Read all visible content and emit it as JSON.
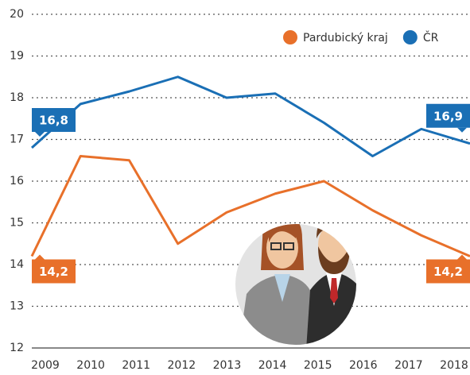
{
  "chart_data": {
    "type": "line",
    "categories": [
      "2009",
      "2010",
      "2011",
      "2012",
      "2013",
      "2014",
      "2015",
      "2016",
      "2017",
      "2018"
    ],
    "series": [
      {
        "name": "Pardubický kraj",
        "color": "#e8702a",
        "values": [
          14.2,
          16.6,
          16.5,
          14.5,
          15.25,
          15.7,
          16.0,
          15.3,
          14.7,
          14.2
        ],
        "value_labels": [
          "14,2",
          null,
          null,
          null,
          null,
          null,
          null,
          null,
          null,
          "14,2"
        ]
      },
      {
        "name": "ČR",
        "color": "#1a6fb5",
        "values": [
          16.8,
          17.85,
          18.15,
          18.5,
          18.0,
          18.1,
          17.4,
          16.6,
          17.25,
          16.9
        ],
        "value_labels": [
          "16,8",
          null,
          null,
          null,
          null,
          null,
          null,
          null,
          null,
          "16,9"
        ]
      }
    ],
    "ylim": [
      12,
      20
    ],
    "yticks": [
      12,
      13,
      14,
      15,
      16,
      17,
      18,
      19,
      20
    ],
    "grid": true,
    "legend": "top-right"
  }
}
